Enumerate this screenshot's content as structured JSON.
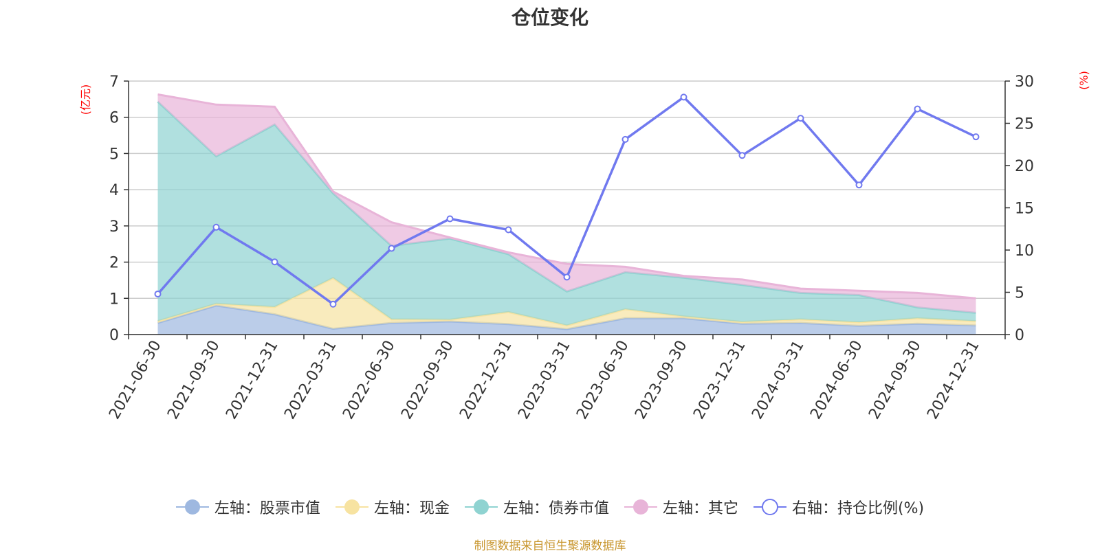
{
  "chart_data": {
    "type": "area",
    "title": "仓位变化",
    "left_axis_label": "(亿元)",
    "right_axis_label": "(%)",
    "categories": [
      "2021-06-30",
      "2021-09-30",
      "2021-12-31",
      "2022-03-31",
      "2022-06-30",
      "2022-09-30",
      "2022-12-31",
      "2023-03-31",
      "2023-06-30",
      "2023-09-30",
      "2023-12-31",
      "2024-03-31",
      "2024-06-30",
      "2024-09-30",
      "2024-12-31"
    ],
    "left_ylim": [
      0,
      7
    ],
    "left_ticks": [
      "0",
      "1",
      "2",
      "3",
      "4",
      "5",
      "6",
      "7"
    ],
    "right_ylim": [
      0,
      30
    ],
    "right_ticks": [
      "0",
      "5",
      "10",
      "15",
      "20",
      "25",
      "30"
    ],
    "stacked_series": [
      {
        "name": "左轴：股票市值",
        "color": "#9eb8e0",
        "values": [
          0.32,
          0.8,
          0.56,
          0.16,
          0.32,
          0.36,
          0.29,
          0.15,
          0.45,
          0.45,
          0.3,
          0.32,
          0.24,
          0.3,
          0.25
        ]
      },
      {
        "name": "左轴：现金",
        "color": "#f7e3a1",
        "values": [
          0.05,
          0.05,
          0.2,
          1.4,
          0.1,
          0.05,
          0.33,
          0.1,
          0.25,
          0.05,
          0.05,
          0.1,
          0.1,
          0.15,
          0.12
        ]
      },
      {
        "name": "左轴：债券市值",
        "color": "#8fd3d1",
        "values": [
          6.06,
          4.07,
          5.04,
          2.34,
          2.03,
          2.24,
          1.6,
          0.94,
          1.02,
          1.07,
          1.02,
          0.73,
          0.75,
          0.3,
          0.23
        ]
      },
      {
        "name": "左轴：其它",
        "color": "#e8b4d8",
        "values": [
          0.2,
          1.43,
          0.49,
          0.05,
          0.65,
          0.03,
          0.05,
          0.76,
          0.15,
          0.05,
          0.15,
          0.12,
          0.12,
          0.4,
          0.4
        ]
      }
    ],
    "line_series": {
      "name": "右轴：持仓比例(%)",
      "color": "#7079ef",
      "values": [
        4.8,
        12.7,
        8.6,
        3.6,
        10.2,
        13.7,
        12.4,
        6.8,
        23.1,
        28.1,
        21.2,
        25.6,
        17.7,
        26.7,
        23.4
      ]
    }
  },
  "source_note": "制图数据来自恒生聚源数据库"
}
